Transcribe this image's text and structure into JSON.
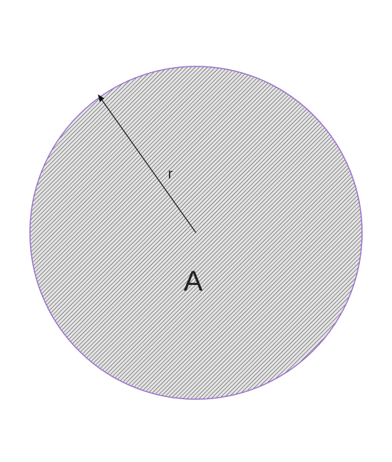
{
  "diagram": {
    "radius_label": "r",
    "area_label": "A"
  },
  "colors": {
    "circle_outline": "#9b6fd0",
    "hatch_line": "#3a3a3a",
    "fill_background": "#e4e4e4",
    "radius_line": "#111111",
    "label_text": "#222222"
  }
}
